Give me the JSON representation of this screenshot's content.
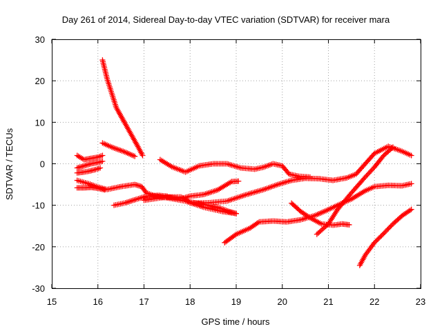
{
  "chart_data": {
    "type": "scatter",
    "title": "Day 261 of 2014, Sidereal Day-to-day VTEC variation (SDTVAR) for receiver mara",
    "xlabel": "GPS time / hours",
    "ylabel": "SDTVAR / TECUs",
    "xlim": [
      15,
      23
    ],
    "ylim": [
      -30,
      30
    ],
    "xticks": [
      "15",
      "16",
      "17",
      "18",
      "19",
      "20",
      "21",
      "22",
      "23"
    ],
    "yticks": [
      "-30",
      "-20",
      "-10",
      "0",
      "10",
      "20",
      "30"
    ],
    "grid": true,
    "marker": "+",
    "color": "#ff0000",
    "series": [
      {
        "name": "s1",
        "x": [
          15.55,
          15.7,
          15.85,
          16.0,
          16.1
        ],
        "y": [
          2.0,
          1.0,
          1.3,
          1.6,
          2.0
        ]
      },
      {
        "name": "s2",
        "x": [
          15.55,
          15.7,
          15.85,
          16.0,
          16.1
        ],
        "y": [
          -1.0,
          -0.5,
          0.0,
          0.3,
          0.6
        ]
      },
      {
        "name": "s3",
        "x": [
          15.55,
          15.7,
          15.8,
          15.95,
          16.05
        ],
        "y": [
          -2.2,
          -2.0,
          -1.8,
          -1.4,
          -1.0
        ]
      },
      {
        "name": "s4",
        "x": [
          15.55,
          15.8,
          16.0,
          16.2,
          16.5,
          16.8,
          16.95,
          17.05,
          17.25,
          17.55,
          17.9,
          18.3,
          18.7,
          19.0
        ],
        "y": [
          -4.0,
          -4.8,
          -5.6,
          -6.2,
          -5.5,
          -5.0,
          -5.5,
          -7.0,
          -7.8,
          -8.3,
          -9.0,
          -10.5,
          -11.5,
          -12.0
        ]
      },
      {
        "name": "s5",
        "x": [
          15.55,
          15.7,
          15.85,
          16.0,
          16.15
        ],
        "y": [
          -5.8,
          -5.8,
          -5.7,
          -5.9,
          -6.3
        ]
      },
      {
        "name": "s6",
        "x": [
          16.1,
          16.2,
          16.3,
          16.4,
          16.55,
          16.7,
          16.85,
          16.97
        ],
        "y": [
          25.0,
          20.5,
          17.0,
          13.5,
          10.5,
          7.5,
          4.5,
          2.0
        ]
      },
      {
        "name": "s7",
        "x": [
          16.1,
          16.3,
          16.55,
          16.8
        ],
        "y": [
          5.0,
          4.0,
          3.0,
          1.8
        ]
      },
      {
        "name": "s8",
        "x": [
          16.35,
          16.6,
          16.85,
          17.05,
          17.3,
          17.5
        ],
        "y": [
          -10.0,
          -9.4,
          -8.5,
          -7.8,
          -7.6,
          -7.8
        ]
      },
      {
        "name": "s9",
        "x": [
          17.0,
          17.3,
          17.55,
          17.8,
          18.0,
          18.3,
          18.6,
          18.85,
          19.0
        ],
        "y": [
          -8.8,
          -8.3,
          -8.0,
          -8.0,
          -9.2,
          -9.8,
          -10.5,
          -11.5,
          -12.0
        ]
      },
      {
        "name": "s10",
        "x": [
          17.35,
          17.6,
          17.9,
          18.2,
          18.5,
          18.8,
          19.1,
          19.4,
          19.6,
          19.8,
          20.0,
          20.15,
          20.35,
          20.6
        ],
        "y": [
          1.0,
          -0.7,
          -2.0,
          -0.5,
          0.0,
          0.0,
          -1.0,
          -1.3,
          -0.8,
          0.0,
          -0.5,
          -2.5,
          -3.0,
          -3.2
        ]
      },
      {
        "name": "s11",
        "x": [
          17.5,
          17.8,
          18.0,
          18.3,
          18.6,
          18.9,
          19.05
        ],
        "y": [
          -8.0,
          -8.4,
          -7.8,
          -7.4,
          -6.3,
          -4.3,
          -4.2
        ]
      },
      {
        "name": "s12",
        "x": [
          18.0,
          18.4,
          18.8,
          19.2,
          19.6,
          19.9,
          20.2,
          20.5,
          20.8,
          21.1,
          21.4,
          21.6,
          21.8,
          22.0,
          22.3,
          22.6,
          22.8
        ],
        "y": [
          -9.5,
          -9.4,
          -9.0,
          -7.5,
          -6.2,
          -5.0,
          -4.0,
          -3.5,
          -3.6,
          -4.0,
          -3.4,
          -2.5,
          0.0,
          2.5,
          4.2,
          3.0,
          2.0
        ]
      },
      {
        "name": "s13",
        "x": [
          18.75,
          19.0,
          19.3,
          19.5,
          19.8,
          20.1,
          20.4,
          20.7,
          20.95,
          21.2,
          21.5,
          21.8,
          22.0,
          22.3,
          22.6,
          22.8
        ],
        "y": [
          -19.0,
          -17.0,
          -15.5,
          -14.0,
          -13.8,
          -14.0,
          -13.5,
          -12.5,
          -11.3,
          -10.0,
          -8.5,
          -6.5,
          -5.5,
          -5.2,
          -5.3,
          -4.8
        ]
      },
      {
        "name": "s14",
        "x": [
          20.2,
          20.4,
          20.6,
          20.85,
          21.1,
          21.3,
          21.45
        ],
        "y": [
          -9.5,
          -11.5,
          -13.0,
          -14.5,
          -14.8,
          -14.5,
          -14.7
        ]
      },
      {
        "name": "s15",
        "x": [
          20.75,
          21.0,
          21.2,
          21.5,
          21.8,
          22.0,
          22.2,
          22.4
        ],
        "y": [
          -17.0,
          -14.5,
          -11.0,
          -7.0,
          -3.2,
          -0.8,
          2.0,
          4.0
        ]
      },
      {
        "name": "s16",
        "x": [
          21.68,
          21.8,
          22.0,
          22.2,
          22.4,
          22.6,
          22.8
        ],
        "y": [
          -24.5,
          -22.0,
          -19.0,
          -16.8,
          -14.5,
          -12.5,
          -11.0
        ]
      }
    ]
  }
}
